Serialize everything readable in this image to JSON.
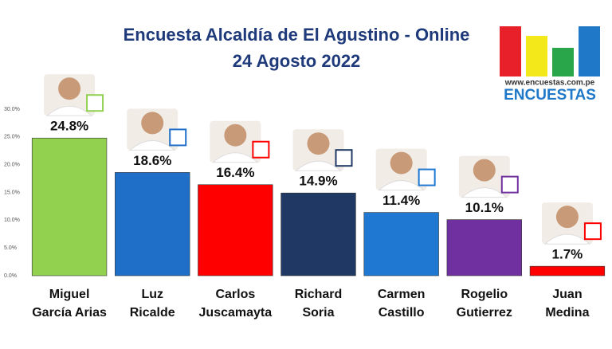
{
  "chart_data": {
    "type": "bar",
    "title": "Encuesta Alcaldía de El Agustino - Online",
    "subtitle": "24 Agosto 2022",
    "categories": [
      [
        "Miguel",
        "García Arias"
      ],
      [
        "Luz",
        "Ricalde"
      ],
      [
        "Carlos",
        "Juscamayta"
      ],
      [
        "Richard",
        "Soria"
      ],
      [
        "Carmen",
        "Castillo"
      ],
      [
        "Rogelio",
        "Gutierrez"
      ],
      [
        "Juan",
        "Medina"
      ]
    ],
    "values": [
      24.8,
      18.6,
      16.4,
      14.9,
      11.4,
      10.1,
      1.7
    ],
    "value_labels": [
      "24.8%",
      "18.6%",
      "16.4%",
      "14.9%",
      "11.4%",
      "10.1%",
      "1.7%"
    ],
    "colors": [
      "#92d050",
      "#1f6fc8",
      "#ff0000",
      "#1f3864",
      "#1f78d2",
      "#7030a0",
      "#ff0000"
    ],
    "ylim": [
      0,
      30
    ],
    "yticks": [
      {
        "value": 0,
        "label": "0.0%"
      },
      {
        "value": 5,
        "label": "5.0%"
      },
      {
        "value": 10,
        "label": "10.0%"
      },
      {
        "value": 15,
        "label": "15.0%"
      },
      {
        "value": 20,
        "label": "20.0%"
      },
      {
        "value": 25,
        "label": "25.0%"
      },
      {
        "value": 30,
        "label": "30.0%"
      }
    ],
    "grid": false,
    "logo": {
      "url": "www.encuestas.com.pe",
      "name": "ENCUESTAS"
    }
  }
}
